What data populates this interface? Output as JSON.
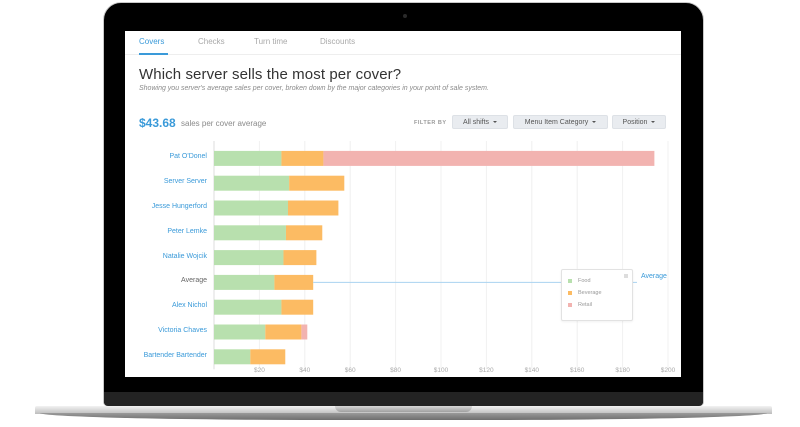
{
  "tabs": [
    {
      "label": "Covers",
      "active": true
    },
    {
      "label": "Checks",
      "active": false
    },
    {
      "label": "Turn time",
      "active": false
    },
    {
      "label": "Discounts",
      "active": false
    }
  ],
  "header": {
    "title": "Which server sells the most per cover?",
    "subtitle": "Showing you server's average sales per cover, broken down by the major categories in your point of sale system."
  },
  "summary": {
    "value": "$43.68",
    "label": "sales per cover average"
  },
  "filters": {
    "label": "FILTER BY",
    "buttons": [
      {
        "label": "All shifts"
      },
      {
        "label": "Menu Item Category"
      },
      {
        "label": "Position"
      }
    ]
  },
  "colors": {
    "accent": "#3a9ad9",
    "food": "#b8e0ae",
    "beverage": "#fcbb63",
    "retail": "#f2b3b0"
  },
  "chart_data": {
    "type": "bar",
    "orientation": "horizontal",
    "stacked": true,
    "categories": [
      "Pat O'Donel",
      "Server Server",
      "Jesse Hungerford",
      "Peter Lemke",
      "Natalie Wojcik",
      "Average",
      "Alex Nichol",
      "Victoria Chaves",
      "Bartender Bartender"
    ],
    "series": [
      {
        "name": "Food",
        "values": [
          29.7,
          33.1,
          32.6,
          31.7,
          30.6,
          26.6,
          29.7,
          22.6,
          16.0
        ]
      },
      {
        "name": "Beverage",
        "values": [
          18.5,
          24.3,
          22.2,
          16.0,
          14.5,
          17.1,
          14.0,
          15.9,
          15.4
        ]
      },
      {
        "name": "Retail",
        "values": [
          145.8,
          0,
          0,
          0,
          0,
          0,
          0,
          2.6,
          0
        ]
      }
    ],
    "xticks": [
      "$20",
      "$40",
      "$60",
      "$80",
      "$100",
      "$120",
      "$140",
      "$160",
      "$180",
      "$200"
    ],
    "xtick_values": [
      20,
      40,
      60,
      80,
      100,
      120,
      140,
      160,
      180,
      200
    ],
    "xlim": [
      0,
      200
    ],
    "grid": true,
    "legend": [
      "Food",
      "Beverage",
      "Retail"
    ],
    "legend_position": "right",
    "reference_line": {
      "label": "Average",
      "value": 43.68
    }
  }
}
